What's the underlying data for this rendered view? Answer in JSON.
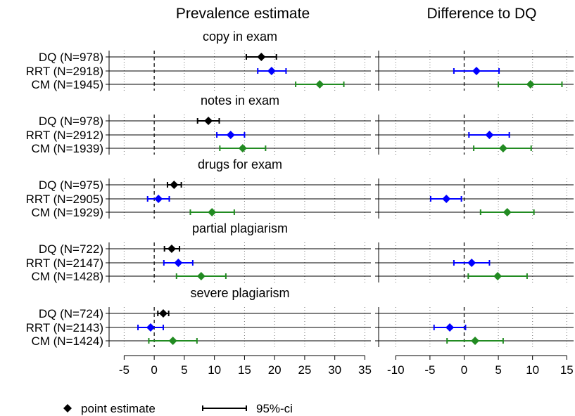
{
  "chart_data": {
    "type": "scatter",
    "style": "forest-plot with point estimates and 95% confidence intervals",
    "panels": [
      {
        "title": "Prevalence estimate",
        "xlim": [
          -7.5,
          36
        ],
        "xticks": [
          -5,
          0,
          5,
          10,
          15,
          20,
          25,
          30,
          35
        ],
        "reference_line": 0
      },
      {
        "title": "Difference to DQ",
        "xlim": [
          -12.5,
          16
        ],
        "xticks": [
          -10,
          -5,
          0,
          5,
          10,
          15
        ],
        "reference_line": 0
      }
    ],
    "grid": "dotted vertical at ticks; horizontal line per row",
    "series_colors": {
      "DQ": "#000000",
      "RRT": "#0000ff",
      "CM": "#228b22"
    },
    "groups": [
      {
        "title": "copy in exam",
        "rows": [
          {
            "label": "DQ (N=978)",
            "series": "DQ",
            "estimate": 17.8,
            "ci": [
              15.3,
              20.3
            ]
          },
          {
            "label": "RRT (N=2918)",
            "series": "RRT",
            "estimate": 19.5,
            "ci": [
              17.2,
              21.9
            ],
            "diff": 1.8,
            "diff_ci": [
              -1.5,
              5.1
            ]
          },
          {
            "label": "CM (N=1945)",
            "series": "CM",
            "estimate": 27.5,
            "ci": [
              23.5,
              31.5
            ],
            "diff": 9.7,
            "diff_ci": [
              5.0,
              14.3
            ]
          }
        ]
      },
      {
        "title": "notes in exam",
        "rows": [
          {
            "label": "DQ (N=978)",
            "series": "DQ",
            "estimate": 9.0,
            "ci": [
              7.2,
              10.8
            ]
          },
          {
            "label": "RRT (N=2912)",
            "series": "RRT",
            "estimate": 12.7,
            "ci": [
              10.4,
              15.0
            ],
            "diff": 3.7,
            "diff_ci": [
              0.7,
              6.6
            ]
          },
          {
            "label": "CM (N=1939)",
            "series": "CM",
            "estimate": 14.7,
            "ci": [
              10.9,
              18.5
            ],
            "diff": 5.7,
            "diff_ci": [
              1.4,
              9.8
            ]
          }
        ]
      },
      {
        "title": "drugs for exam",
        "rows": [
          {
            "label": "DQ (N=975)",
            "series": "DQ",
            "estimate": 3.3,
            "ci": [
              2.2,
              4.5
            ]
          },
          {
            "label": "RRT (N=2905)",
            "series": "RRT",
            "estimate": 0.7,
            "ci": [
              -1.1,
              2.5
            ],
            "diff": -2.6,
            "diff_ci": [
              -4.9,
              -0.4
            ]
          },
          {
            "label": "CM (N=1929)",
            "series": "CM",
            "estimate": 9.6,
            "ci": [
              6.0,
              13.3
            ],
            "diff": 6.3,
            "diff_ci": [
              2.4,
              10.2
            ]
          }
        ]
      },
      {
        "title": "partial plagiarism",
        "rows": [
          {
            "label": "DQ (N=722)",
            "series": "DQ",
            "estimate": 2.9,
            "ci": [
              1.7,
              4.2
            ]
          },
          {
            "label": "RRT (N=2147)",
            "series": "RRT",
            "estimate": 4.0,
            "ci": [
              1.6,
              6.4
            ],
            "diff": 1.1,
            "diff_ci": [
              -1.5,
              3.7
            ]
          },
          {
            "label": "CM (N=1428)",
            "series": "CM",
            "estimate": 7.8,
            "ci": [
              3.7,
              11.9
            ],
            "diff": 4.9,
            "diff_ci": [
              0.6,
              9.2
            ]
          }
        ]
      },
      {
        "title": "severe plagiarism",
        "rows": [
          {
            "label": "DQ (N=724)",
            "series": "DQ",
            "estimate": 1.5,
            "ci": [
              0.6,
              2.4
            ]
          },
          {
            "label": "RRT (N=2143)",
            "series": "RRT",
            "estimate": -0.6,
            "ci": [
              -2.7,
              1.5
            ],
            "diff": -2.1,
            "diff_ci": [
              -4.4,
              0.2
            ]
          },
          {
            "label": "CM (N=1424)",
            "series": "CM",
            "estimate": 3.1,
            "ci": [
              -0.9,
              7.1
            ],
            "diff": 1.6,
            "diff_ci": [
              -2.5,
              5.7
            ]
          }
        ]
      }
    ],
    "legend": {
      "position": "bottom",
      "items": [
        {
          "symbol": "diamond",
          "label": "point estimate"
        },
        {
          "symbol": "errorbar",
          "label": "95%-ci"
        }
      ]
    }
  }
}
